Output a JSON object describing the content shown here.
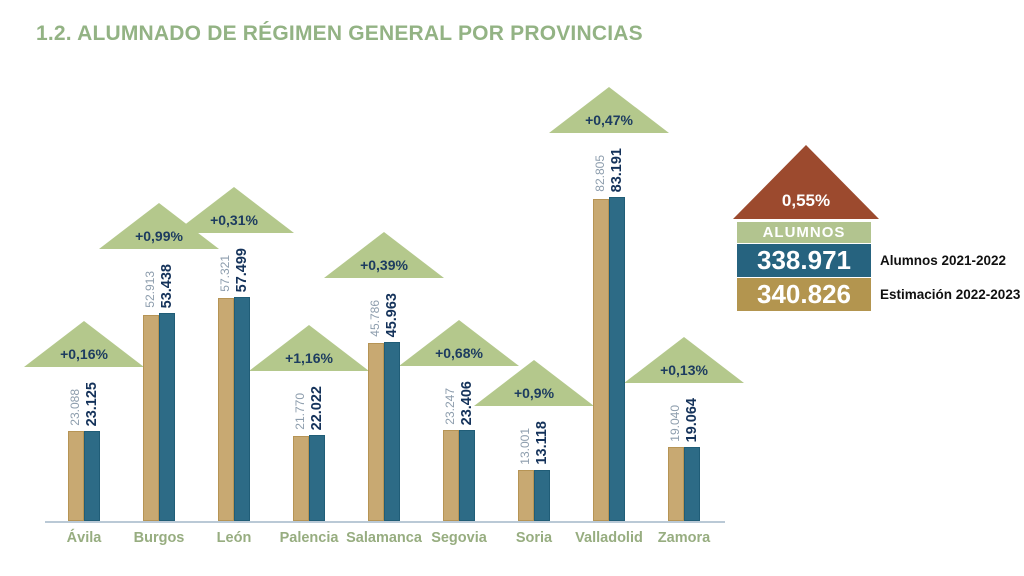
{
  "title": "1.2. ALUMNADO DE RÉGIMEN GENERAL POR PROVINCIAS",
  "colors": {
    "title_green": "#93b384",
    "bar_tan": "#c8a972",
    "bar_teal": "#2d6b86",
    "arrow_green": "#b4c88c",
    "arrow_brick": "#9c4a2e",
    "value_muted": "#8d9dad",
    "value_strong": "#14325a",
    "axis_label_green": "#97ad80",
    "legend_header_green": "#b2c48f",
    "legend_teal": "#26637f",
    "legend_tan": "#b3954f"
  },
  "chart_data": {
    "type": "bar",
    "title": "1.2. ALUMNADO DE RÉGIMEN GENERAL POR PROVINCIAS",
    "categories": [
      "Ávila",
      "Burgos",
      "León",
      "Palencia",
      "Salamanca",
      "Segovia",
      "Soria",
      "Valladolid",
      "Zamora"
    ],
    "series": [
      {
        "name": "Alumnos 2021-2022",
        "values": [
          23088,
          52913,
          57321,
          21770,
          45786,
          23247,
          13001,
          82805,
          19040
        ]
      },
      {
        "name": "Estimación 2022-2023",
        "values": [
          23125,
          53438,
          57499,
          22022,
          45963,
          23406,
          13118,
          83191,
          19064
        ]
      }
    ],
    "pct_changes": [
      "+0,16%",
      "+0,99%",
      "+0,31%",
      "+1,16%",
      "+0,39%",
      "+0,68%",
      "+0,9%",
      "+0,47%",
      "+0,13%"
    ],
    "xlabel": "",
    "ylabel": "",
    "ylim": [
      0,
      83191
    ],
    "grid": false,
    "legend_position": "right"
  },
  "legend": {
    "total_pct": "0,55%",
    "header": "ALUMNOS",
    "rows": [
      {
        "value": "338.971",
        "label": "Alumnos 2021-2022"
      },
      {
        "value": "340.826",
        "label": "Estimación 2022-2023"
      }
    ]
  }
}
